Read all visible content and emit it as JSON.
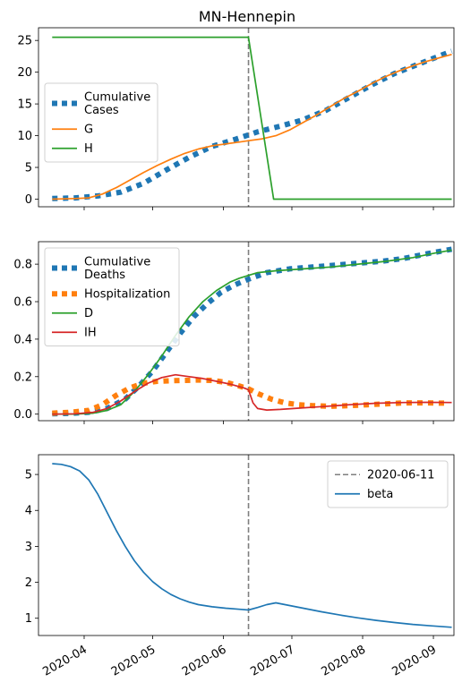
{
  "chart_data": {
    "title": "MN-Hennepin",
    "x_dates": [
      "2020-04",
      "2020-05",
      "2020-06",
      "2020-07",
      "2020-08",
      "2020-09"
    ],
    "x_range_days": [
      -20,
      162
    ],
    "event": {
      "day": 72,
      "label": "2020-06-11"
    },
    "panels": [
      {
        "type": "line",
        "ylim": [
          -1.2,
          27
        ],
        "yticks": [
          0,
          5,
          10,
          15,
          20,
          25
        ],
        "legend_position": "center-left",
        "series": [
          {
            "name": "Cumulative Cases",
            "style": "dotted",
            "color": "#1f77b4",
            "points": [
              [
                -14,
                0.1
              ],
              [
                -4,
                0.2
              ],
              [
                6,
                0.5
              ],
              [
                16,
                1.1
              ],
              [
                26,
                2.5
              ],
              [
                36,
                4.6
              ],
              [
                46,
                6.6
              ],
              [
                56,
                8.3
              ],
              [
                66,
                9.4
              ],
              [
                76,
                10.6
              ],
              [
                86,
                11.5
              ],
              [
                96,
                12.5
              ],
              [
                106,
                14.0
              ],
              [
                116,
                16.0
              ],
              [
                126,
                18.0
              ],
              [
                136,
                19.8
              ],
              [
                146,
                21.2
              ],
              [
                156,
                22.6
              ],
              [
                161,
                23.3
              ]
            ]
          },
          {
            "name": "G",
            "style": "solid",
            "color": "#ff7f0e",
            "points": [
              [
                -14,
                0
              ],
              [
                -4,
                0.1
              ],
              [
                2,
                0.2
              ],
              [
                8,
                0.8
              ],
              [
                14,
                1.8
              ],
              [
                20,
                3.0
              ],
              [
                26,
                4.2
              ],
              [
                32,
                5.3
              ],
              [
                38,
                6.3
              ],
              [
                44,
                7.2
              ],
              [
                50,
                7.9
              ],
              [
                56,
                8.4
              ],
              [
                62,
                8.7
              ],
              [
                68,
                9.0
              ],
              [
                72,
                9.2
              ],
              [
                78,
                9.5
              ],
              [
                84,
                10.0
              ],
              [
                90,
                10.9
              ],
              [
                96,
                12.1
              ],
              [
                102,
                13.3
              ],
              [
                108,
                14.6
              ],
              [
                114,
                15.9
              ],
              [
                120,
                17.0
              ],
              [
                126,
                18.2
              ],
              [
                132,
                19.3
              ],
              [
                138,
                20.2
              ],
              [
                144,
                21.0
              ],
              [
                150,
                21.7
              ],
              [
                156,
                22.3
              ],
              [
                161,
                22.8
              ]
            ]
          },
          {
            "name": "H",
            "style": "solid",
            "color": "#2ca02c",
            "points": [
              [
                -14,
                25.5
              ],
              [
                72,
                25.5
              ],
              [
                83,
                0
              ],
              [
                161,
                0
              ]
            ]
          }
        ]
      },
      {
        "type": "line",
        "ylim": [
          -0.035,
          0.92
        ],
        "yticks": [
          0.0,
          0.2,
          0.4,
          0.6,
          0.8
        ],
        "legend_position": "upper-left",
        "series": [
          {
            "name": "Cumulative Deaths",
            "style": "dotted",
            "color": "#1f77b4",
            "points": [
              [
                -14,
                0.002
              ],
              [
                -6,
                0.004
              ],
              [
                2,
                0.01
              ],
              [
                10,
                0.03
              ],
              [
                18,
                0.08
              ],
              [
                24,
                0.15
              ],
              [
                30,
                0.23
              ],
              [
                36,
                0.33
              ],
              [
                42,
                0.43
              ],
              [
                48,
                0.52
              ],
              [
                54,
                0.59
              ],
              [
                60,
                0.65
              ],
              [
                66,
                0.69
              ],
              [
                72,
                0.72
              ],
              [
                80,
                0.755
              ],
              [
                90,
                0.775
              ],
              [
                100,
                0.785
              ],
              [
                110,
                0.795
              ],
              [
                120,
                0.805
              ],
              [
                130,
                0.815
              ],
              [
                140,
                0.83
              ],
              [
                150,
                0.855
              ],
              [
                161,
                0.88
              ]
            ]
          },
          {
            "name": "Hospitalization",
            "style": "dotted",
            "color": "#ff7f0e",
            "points": [
              [
                -14,
                0.005
              ],
              [
                -6,
                0.01
              ],
              [
                2,
                0.02
              ],
              [
                8,
                0.05
              ],
              [
                14,
                0.1
              ],
              [
                20,
                0.14
              ],
              [
                26,
                0.165
              ],
              [
                32,
                0.175
              ],
              [
                38,
                0.178
              ],
              [
                44,
                0.18
              ],
              [
                50,
                0.182
              ],
              [
                56,
                0.18
              ],
              [
                62,
                0.17
              ],
              [
                68,
                0.15
              ],
              [
                72,
                0.135
              ],
              [
                76,
                0.11
              ],
              [
                82,
                0.08
              ],
              [
                88,
                0.06
              ],
              [
                94,
                0.05
              ],
              [
                100,
                0.045
              ],
              [
                108,
                0.042
              ],
              [
                116,
                0.045
              ],
              [
                124,
                0.05
              ],
              [
                132,
                0.055
              ],
              [
                140,
                0.06
              ],
              [
                150,
                0.06
              ],
              [
                160,
                0.058
              ]
            ]
          },
          {
            "name": "D",
            "style": "solid",
            "color": "#2ca02c",
            "points": [
              [
                -14,
                0
              ],
              [
                -4,
                0
              ],
              [
                4,
                0.005
              ],
              [
                10,
                0.02
              ],
              [
                16,
                0.05
              ],
              [
                22,
                0.12
              ],
              [
                28,
                0.21
              ],
              [
                34,
                0.31
              ],
              [
                40,
                0.42
              ],
              [
                46,
                0.52
              ],
              [
                52,
                0.6
              ],
              [
                58,
                0.66
              ],
              [
                64,
                0.705
              ],
              [
                68,
                0.725
              ],
              [
                72,
                0.74
              ],
              [
                76,
                0.755
              ],
              [
                84,
                0.765
              ],
              [
                96,
                0.775
              ],
              [
                108,
                0.785
              ],
              [
                120,
                0.8
              ],
              [
                132,
                0.815
              ],
              [
                144,
                0.835
              ],
              [
                154,
                0.86
              ],
              [
                161,
                0.875
              ]
            ]
          },
          {
            "name": "IH",
            "style": "solid",
            "color": "#d62728",
            "points": [
              [
                -14,
                0
              ],
              [
                -4,
                0.002
              ],
              [
                4,
                0.01
              ],
              [
                10,
                0.03
              ],
              [
                16,
                0.07
              ],
              [
                22,
                0.12
              ],
              [
                28,
                0.165
              ],
              [
                34,
                0.195
              ],
              [
                40,
                0.21
              ],
              [
                46,
                0.2
              ],
              [
                52,
                0.19
              ],
              [
                58,
                0.175
              ],
              [
                64,
                0.16
              ],
              [
                70,
                0.14
              ],
              [
                72,
                0.13
              ],
              [
                74,
                0.06
              ],
              [
                76,
                0.03
              ],
              [
                80,
                0.022
              ],
              [
                86,
                0.025
              ],
              [
                94,
                0.032
              ],
              [
                104,
                0.04
              ],
              [
                116,
                0.05
              ],
              [
                128,
                0.058
              ],
              [
                140,
                0.062
              ],
              [
                150,
                0.063
              ],
              [
                161,
                0.062
              ]
            ]
          }
        ]
      },
      {
        "type": "line",
        "ylim": [
          0.52,
          5.55
        ],
        "yticks": [
          1,
          2,
          3,
          4,
          5
        ],
        "legend_position": "upper-right",
        "series": [
          {
            "name": "2020-06-11",
            "style": "dashed",
            "color": "#7f7f7f",
            "vertical_at_day": 72
          },
          {
            "name": "beta",
            "style": "solid",
            "color": "#1f77b4",
            "points": [
              [
                -14,
                5.3
              ],
              [
                -10,
                5.28
              ],
              [
                -6,
                5.22
              ],
              [
                -2,
                5.1
              ],
              [
                2,
                4.85
              ],
              [
                6,
                4.45
              ],
              [
                10,
                3.95
              ],
              [
                14,
                3.45
              ],
              [
                18,
                3.0
              ],
              [
                22,
                2.6
              ],
              [
                26,
                2.28
              ],
              [
                30,
                2.02
              ],
              [
                34,
                1.82
              ],
              [
                38,
                1.66
              ],
              [
                42,
                1.54
              ],
              [
                46,
                1.45
              ],
              [
                50,
                1.38
              ],
              [
                56,
                1.32
              ],
              [
                62,
                1.28
              ],
              [
                68,
                1.25
              ],
              [
                72,
                1.23
              ],
              [
                76,
                1.3
              ],
              [
                80,
                1.38
              ],
              [
                84,
                1.43
              ],
              [
                88,
                1.38
              ],
              [
                96,
                1.28
              ],
              [
                104,
                1.18
              ],
              [
                112,
                1.09
              ],
              [
                120,
                1.01
              ],
              [
                128,
                0.94
              ],
              [
                136,
                0.88
              ],
              [
                144,
                0.83
              ],
              [
                152,
                0.79
              ],
              [
                161,
                0.75
              ]
            ]
          }
        ]
      }
    ]
  }
}
